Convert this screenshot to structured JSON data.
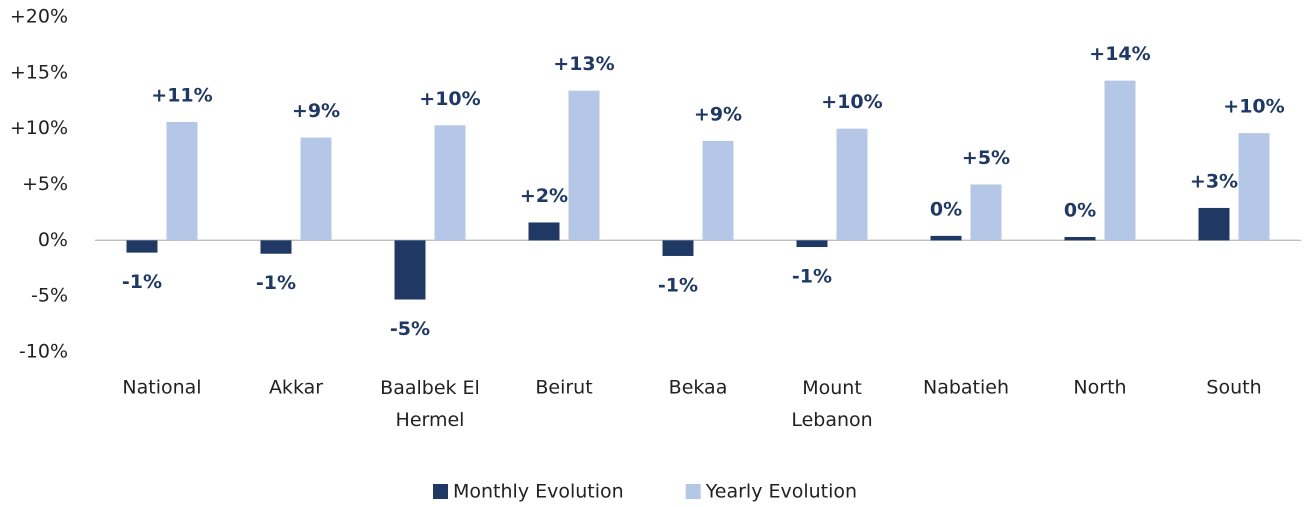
{
  "chart_data": {
    "type": "bar",
    "categories": [
      "National",
      "Akkar",
      "Baalbek El Hermel",
      "Beirut",
      "Bekaa",
      "Mount Lebanon",
      "Nabatieh",
      "North",
      "South"
    ],
    "series": [
      {
        "name": "Monthly Evolution",
        "color": "#203864",
        "values": [
          -1.1,
          -1.2,
          -5.3,
          1.6,
          -1.4,
          -0.6,
          0.4,
          0.3,
          2.9
        ],
        "value_labels": [
          "-1%",
          "-1%",
          "-5%",
          "+2%",
          "-1%",
          "-1%",
          "0%",
          "0%",
          "+3%"
        ]
      },
      {
        "name": "Yearly Evolution",
        "color": "#b4c7e7",
        "values": [
          10.6,
          9.2,
          10.3,
          13.4,
          8.9,
          10.0,
          5.0,
          14.3,
          9.6
        ],
        "value_labels": [
          "+11%",
          "+9%",
          "+10%",
          "+13%",
          "+9%",
          "+10%",
          "+5%",
          "+14%",
          "+10%"
        ]
      }
    ],
    "ylim": [
      -10,
      20
    ],
    "yticks": [
      {
        "value": -10,
        "label": "-10%"
      },
      {
        "value": -5,
        "label": "-5%"
      },
      {
        "value": 0,
        "label": "0%"
      },
      {
        "value": 5,
        "label": "+5%"
      },
      {
        "value": 10,
        "label": "+10%"
      },
      {
        "value": 15,
        "label": "+15%"
      },
      {
        "value": 20,
        "label": "+20%"
      }
    ],
    "legend": "bottom"
  }
}
